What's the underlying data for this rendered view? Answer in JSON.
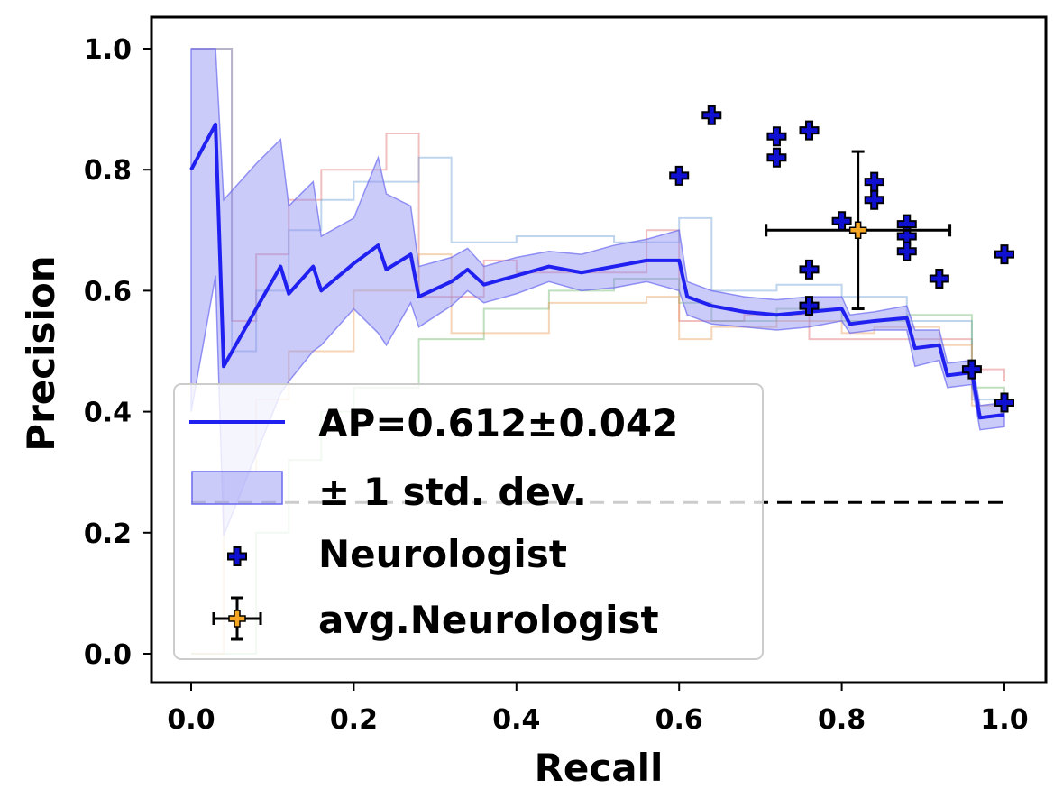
{
  "chart_data": {
    "type": "line",
    "xlabel": "Recall",
    "ylabel": "Precision",
    "xlim": [
      -0.05,
      1.05
    ],
    "ylim": [
      -0.05,
      1.05
    ],
    "xticks": [
      "0.0",
      "0.2",
      "0.4",
      "0.6",
      "0.8",
      "1.0"
    ],
    "yticks": [
      "0.0",
      "0.2",
      "0.4",
      "0.6",
      "0.8",
      "1.0"
    ],
    "grid": false,
    "legend_position": "lower-left",
    "colors": {
      "mean": "#2020f0",
      "band": "#8c8cf5",
      "neurologist": "#1010d0",
      "avg": "#f5a623",
      "baseline": "#000000",
      "fold_red": "#e07070",
      "fold_blue": "#70a0d8",
      "fold_green": "#70b870",
      "fold_orange": "#e8a060"
    },
    "series": [
      {
        "name": "AP=0.612±0.042",
        "x": [
          0.0,
          0.03,
          0.04,
          0.08,
          0.11,
          0.12,
          0.15,
          0.16,
          0.2,
          0.23,
          0.24,
          0.27,
          0.28,
          0.32,
          0.34,
          0.36,
          0.4,
          0.44,
          0.48,
          0.52,
          0.56,
          0.6,
          0.61,
          0.64,
          0.68,
          0.72,
          0.76,
          0.8,
          0.81,
          0.84,
          0.88,
          0.89,
          0.92,
          0.93,
          0.96,
          0.97,
          1.0
        ],
        "y": [
          0.8,
          0.875,
          0.475,
          0.57,
          0.64,
          0.595,
          0.64,
          0.6,
          0.645,
          0.675,
          0.635,
          0.66,
          0.59,
          0.615,
          0.635,
          0.61,
          0.625,
          0.64,
          0.63,
          0.64,
          0.65,
          0.65,
          0.59,
          0.575,
          0.565,
          0.56,
          0.565,
          0.57,
          0.545,
          0.55,
          0.555,
          0.505,
          0.51,
          0.46,
          0.465,
          0.39,
          0.395
        ],
        "band_upper": [
          1.0,
          1.0,
          0.75,
          0.81,
          0.85,
          0.74,
          0.78,
          0.69,
          0.72,
          0.82,
          0.76,
          0.74,
          0.64,
          0.655,
          0.67,
          0.64,
          0.655,
          0.665,
          0.66,
          0.675,
          0.685,
          0.7,
          0.615,
          0.6,
          0.59,
          0.585,
          0.59,
          0.59,
          0.56,
          0.565,
          0.575,
          0.535,
          0.535,
          0.48,
          0.485,
          0.41,
          0.415
        ],
        "band_lower": [
          0.4,
          0.625,
          0.195,
          0.33,
          0.43,
          0.45,
          0.5,
          0.51,
          0.57,
          0.53,
          0.51,
          0.58,
          0.54,
          0.575,
          0.6,
          0.58,
          0.595,
          0.615,
          0.6,
          0.605,
          0.615,
          0.6,
          0.56,
          0.545,
          0.54,
          0.535,
          0.54,
          0.55,
          0.53,
          0.535,
          0.535,
          0.475,
          0.485,
          0.44,
          0.445,
          0.37,
          0.375
        ]
      }
    ],
    "band_name": "± 1 std. dev.",
    "fold_curves": [
      {
        "color": "fold_red",
        "x": [
          0.0,
          0.04,
          0.05,
          0.08,
          0.12,
          0.16,
          0.24,
          0.28,
          0.36,
          0.4,
          0.56,
          0.6,
          0.68,
          0.76,
          0.88,
          0.96,
          1.0
        ],
        "y": [
          1.0,
          1.0,
          0.55,
          0.66,
          0.75,
          0.8,
          0.86,
          0.59,
          0.65,
          0.63,
          0.7,
          0.55,
          0.56,
          0.52,
          0.52,
          0.47,
          0.45
        ]
      },
      {
        "color": "fold_blue",
        "x": [
          0.0,
          0.04,
          0.05,
          0.08,
          0.12,
          0.16,
          0.2,
          0.28,
          0.32,
          0.4,
          0.52,
          0.6,
          0.64,
          0.72,
          0.8,
          0.88,
          0.96,
          1.0
        ],
        "y": [
          1.0,
          1.0,
          0.5,
          0.6,
          0.7,
          0.75,
          0.78,
          0.82,
          0.68,
          0.69,
          0.68,
          0.72,
          0.6,
          0.61,
          0.59,
          0.55,
          0.42,
          0.4
        ]
      },
      {
        "color": "fold_green",
        "x": [
          0.0,
          0.04,
          0.08,
          0.12,
          0.16,
          0.2,
          0.28,
          0.36,
          0.44,
          0.52,
          0.6,
          0.64,
          0.72,
          0.8,
          0.88,
          0.96,
          1.0
        ],
        "y": [
          0.0,
          0.0,
          0.2,
          0.32,
          0.4,
          0.44,
          0.52,
          0.57,
          0.6,
          0.62,
          0.58,
          0.55,
          0.57,
          0.55,
          0.56,
          0.44,
          0.42
        ]
      },
      {
        "color": "fold_orange",
        "x": [
          0.0,
          0.02,
          0.04,
          0.08,
          0.12,
          0.2,
          0.28,
          0.32,
          0.44,
          0.56,
          0.6,
          0.64,
          0.72,
          0.8,
          0.84,
          0.92,
          0.96,
          1.0
        ],
        "y": [
          0.0,
          0.0,
          0.3,
          0.42,
          0.5,
          0.6,
          0.66,
          0.53,
          0.58,
          0.59,
          0.52,
          0.54,
          0.55,
          0.53,
          0.54,
          0.51,
          0.41,
          0.4
        ]
      }
    ],
    "neurologists": {
      "name": "Neurologist",
      "points": [
        [
          0.6,
          0.79
        ],
        [
          0.64,
          0.89
        ],
        [
          0.72,
          0.855
        ],
        [
          0.72,
          0.82
        ],
        [
          0.76,
          0.865
        ],
        [
          0.84,
          0.78
        ],
        [
          0.84,
          0.75
        ],
        [
          0.8,
          0.715
        ],
        [
          0.88,
          0.71
        ],
        [
          0.88,
          0.69
        ],
        [
          0.88,
          0.665
        ],
        [
          0.92,
          0.62
        ],
        [
          1.0,
          0.66
        ],
        [
          0.76,
          0.635
        ],
        [
          0.76,
          0.575
        ],
        [
          0.96,
          0.47
        ],
        [
          1.0,
          0.415
        ]
      ]
    },
    "avg_neurologist": {
      "name": "avg.Neurologist",
      "x": 0.82,
      "y": 0.7,
      "x_err": 0.113,
      "y_err": 0.13
    },
    "baseline": {
      "y": 0.25,
      "x_range": [
        0.0,
        1.0
      ]
    }
  }
}
